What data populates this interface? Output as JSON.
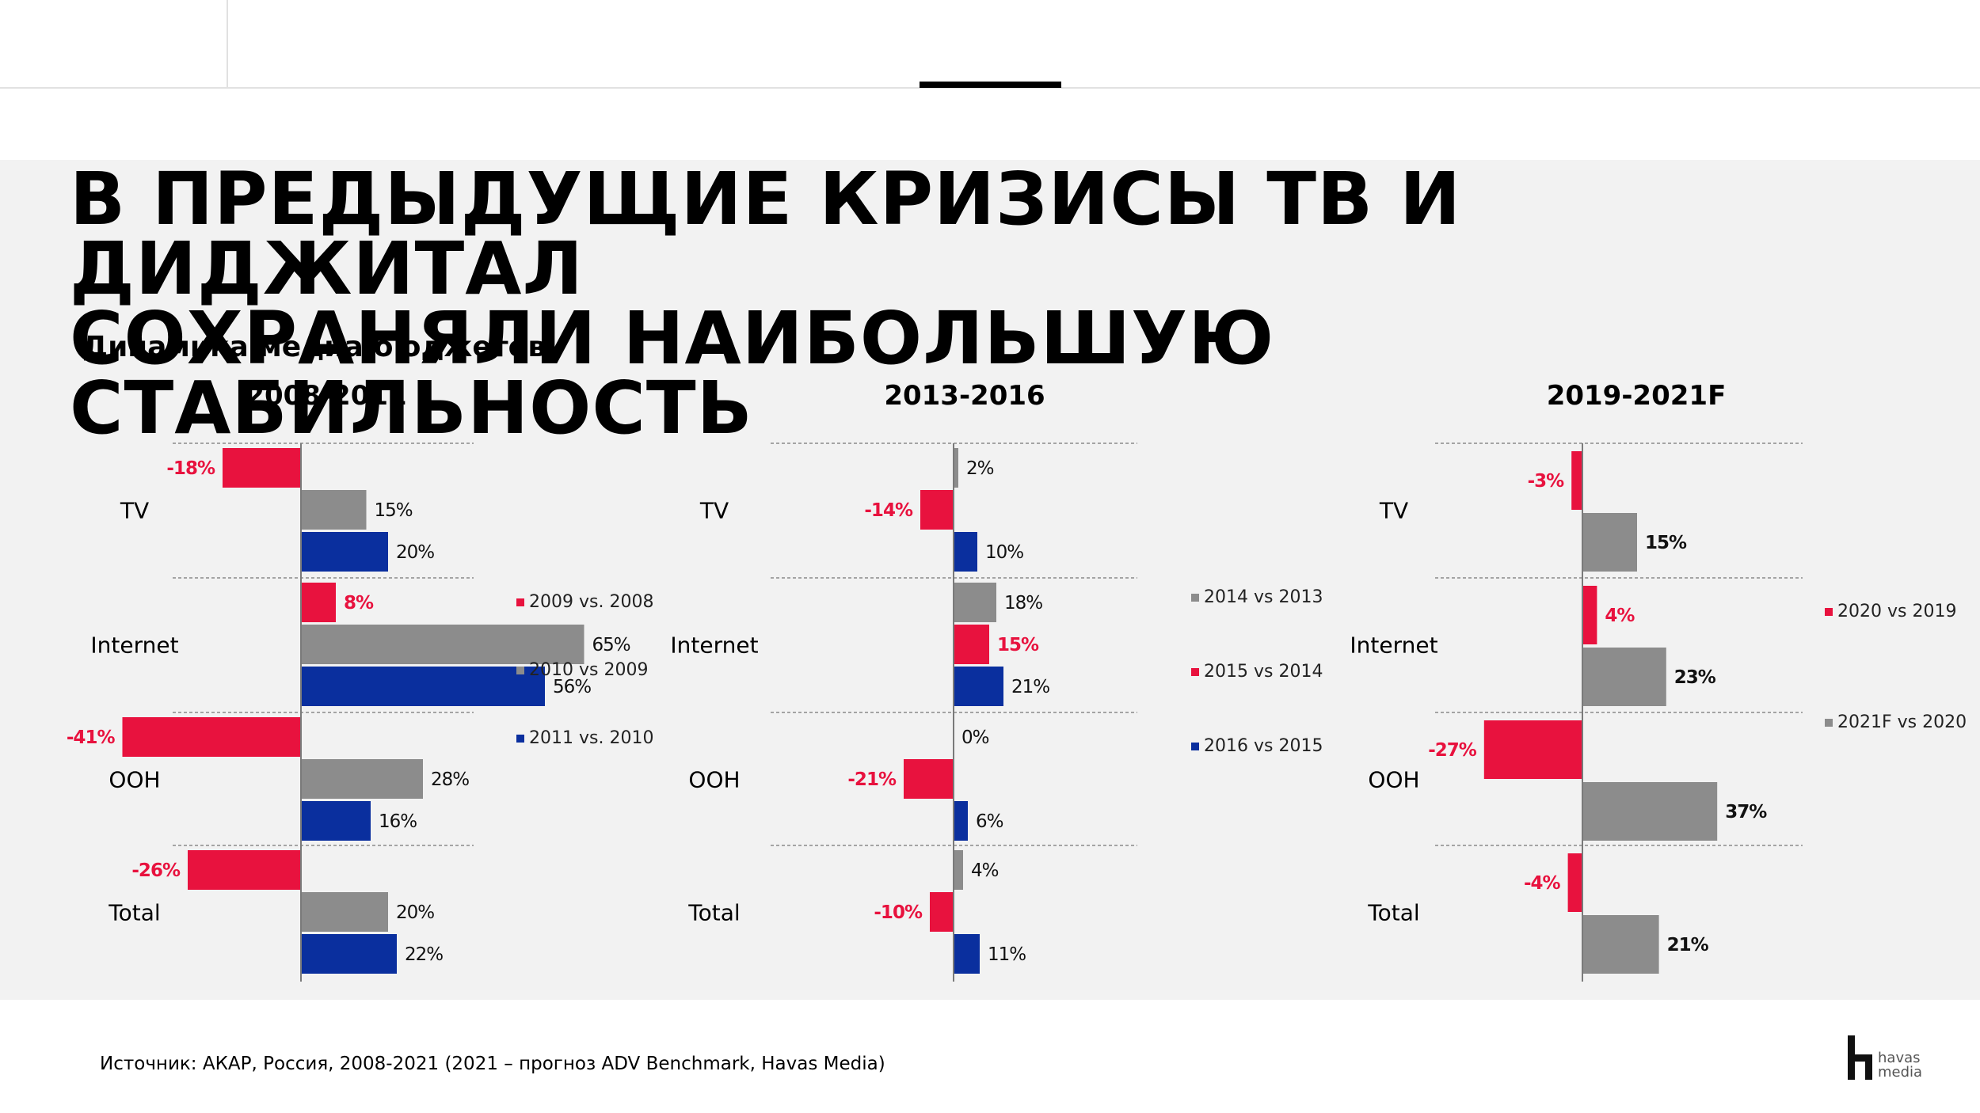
{
  "title_line1": "В ПРЕДЫДУЩИЕ КРИЗИСЫ ТВ И ДИДЖИТАЛ",
  "title_line2": "СОХРАНЯЛИ НАИБОЛЬШУЮ СТАБИЛЬНОСТЬ",
  "subtitle": "Динамика медиа бюджетов",
  "source": "Источник: АКАР, Россия, 2008-2021    (2021 –  прогноз  ADV Benchmark, Havas Media)",
  "logo": {
    "line1": "havas",
    "line2": "media",
    "icon": "havas-media-logo-icon"
  },
  "colors": {
    "red": "#e8123e",
    "gray": "#8c8c8c",
    "blue": "#0a2f9e"
  },
  "chart_data": [
    {
      "type": "bar",
      "orientation": "horizontal",
      "title": "2008-2011",
      "categories": [
        "TV",
        "Internet",
        "OOH",
        "Total"
      ],
      "unit": "%",
      "series": [
        {
          "name": "2009 vs. 2008",
          "color": "#e8123e",
          "values": [
            -18,
            8,
            -41,
            -26
          ]
        },
        {
          "name": "2010 vs 2009",
          "color": "#8c8c8c",
          "values": [
            15,
            65,
            28,
            20
          ]
        },
        {
          "name": "2011 vs. 2010",
          "color": "#0a2f9e",
          "values": [
            20,
            56,
            16,
            22
          ]
        }
      ]
    },
    {
      "type": "bar",
      "orientation": "horizontal",
      "title": "2013-2016",
      "categories": [
        "TV",
        "Internet",
        "OOH",
        "Total"
      ],
      "unit": "%",
      "series": [
        {
          "name": "2014 vs 2013",
          "color": "#8c8c8c",
          "values": [
            2,
            18,
            0,
            4
          ]
        },
        {
          "name": "2015 vs 2014",
          "color": "#e8123e",
          "values": [
            -14,
            15,
            -21,
            -10
          ]
        },
        {
          "name": "2016 vs 2015",
          "color": "#0a2f9e",
          "values": [
            10,
            21,
            6,
            11
          ]
        }
      ]
    },
    {
      "type": "bar",
      "orientation": "horizontal",
      "title": "2019-2021F",
      "categories": [
        "TV",
        "Internet",
        "OOH",
        "Total"
      ],
      "unit": "%",
      "series": [
        {
          "name": "2020 vs 2019",
          "color": "#e8123e",
          "values": [
            -3,
            4,
            -27,
            -4
          ]
        },
        {
          "name": "2021F vs 2020",
          "color": "#8c8c8c",
          "values": [
            15,
            23,
            37,
            21
          ]
        }
      ]
    }
  ]
}
